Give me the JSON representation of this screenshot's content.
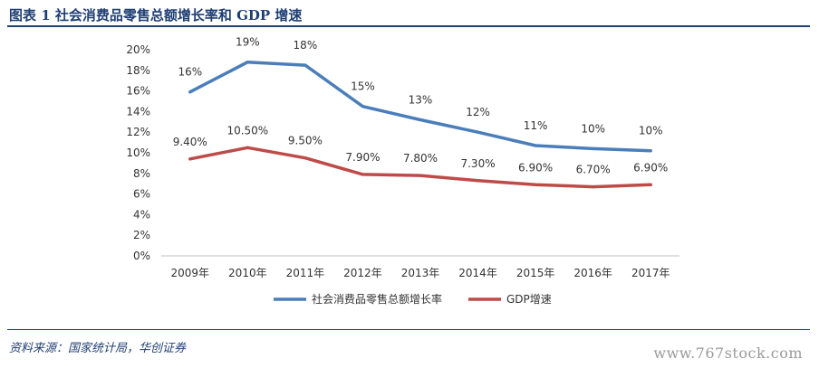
{
  "figure": {
    "title": "图表 1    社会消费品零售总额增长率和 GDP 增速",
    "source": "资料来源：国家统计局，华创证券",
    "watermark": "www.767stock.com"
  },
  "chart_data": {
    "type": "line",
    "title": "",
    "xlabel": "",
    "ylabel": "",
    "categories": [
      "2009年",
      "2010年",
      "2011年",
      "2012年",
      "2013年",
      "2014年",
      "2015年",
      "2016年",
      "2017年"
    ],
    "ylim": [
      0,
      20
    ],
    "yticks": [
      0,
      2,
      4,
      6,
      8,
      10,
      12,
      14,
      16,
      18,
      20
    ],
    "ytick_labels": [
      "0%",
      "2%",
      "4%",
      "6%",
      "8%",
      "10%",
      "12%",
      "14%",
      "16%",
      "18%",
      "20%"
    ],
    "grid": false,
    "legend_position": "bottom",
    "series": [
      {
        "name": "社会消费品零售总额增长率",
        "color": "#4a7ebb",
        "values": [
          15.9,
          18.8,
          18.5,
          14.5,
          13.2,
          12.0,
          10.7,
          10.4,
          10.2
        ],
        "labels": [
          "16%",
          "19%",
          "18%",
          "15%",
          "13%",
          "12%",
          "11%",
          "10%",
          "10%"
        ]
      },
      {
        "name": "GDP增速",
        "color": "#be4b48",
        "values": [
          9.4,
          10.5,
          9.5,
          7.9,
          7.8,
          7.3,
          6.9,
          6.7,
          6.9
        ],
        "labels": [
          "9.40%",
          "10.50%",
          "9.50%",
          "7.90%",
          "7.80%",
          "7.30%",
          "6.90%",
          "6.70%",
          "6.90%"
        ]
      }
    ]
  }
}
